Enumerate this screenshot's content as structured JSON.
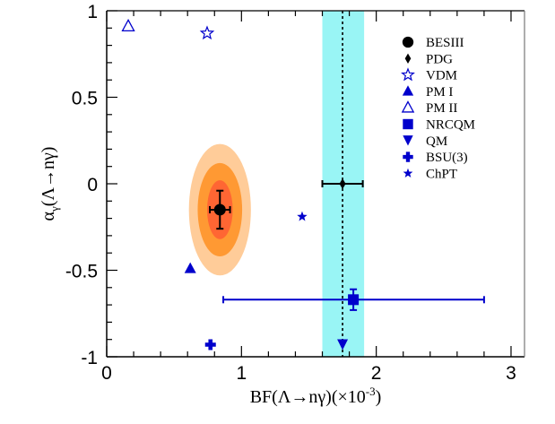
{
  "chart_data": {
    "type": "scatter",
    "title": "",
    "xlabel": "BF(Λ→nγ)(×10",
    "xlabel_sup": "-3",
    "xlabel_end": ")",
    "ylabel": "α",
    "ylabel_sub": "γ",
    "ylabel_end": "(Λ→nγ)",
    "xlim": [
      0,
      3.1
    ],
    "ylim": [
      -1,
      1
    ],
    "x_ticks": [
      0,
      1,
      2,
      3
    ],
    "x_tick_labels": [
      "0",
      "1",
      "2",
      "3"
    ],
    "y_ticks": [
      1,
      0.5,
      0,
      -0.5,
      -1
    ],
    "y_tick_labels": [
      "1",
      "0.5",
      "0",
      "-0.5",
      "-1"
    ],
    "grid": false,
    "legend_position": "top-right",
    "pdg_band": {
      "x_min": 1.6,
      "x_max": 1.91,
      "central": 1.75,
      "color": "#99f5f5"
    },
    "besiii_contours": {
      "center": [
        0.84,
        -0.15
      ],
      "levels": [
        {
          "sigma": 3,
          "rx": 0.23,
          "ry": 0.38,
          "color": "#ffcc99"
        },
        {
          "sigma": 2,
          "rx": 0.165,
          "ry": 0.27,
          "color": "#ff9933"
        },
        {
          "sigma": 1,
          "rx": 0.095,
          "ry": 0.17,
          "color": "#ff6633"
        }
      ]
    },
    "series": [
      {
        "name": "BESIII",
        "marker": "circle",
        "color": "#000000",
        "x": 0.84,
        "y": -0.15,
        "xerr": 0.075,
        "yerr": 0.11
      },
      {
        "name": "PDG",
        "marker": "diamond",
        "color": "#000000",
        "x": 1.75,
        "y": 0.0,
        "xerr": 0.15,
        "yerr": 0
      },
      {
        "name": "VDM",
        "marker": "open-star",
        "color": "#0000cc",
        "x": 0.745,
        "y": 0.87
      },
      {
        "name": "PM I",
        "marker": "triangle-up",
        "color": "#0000cc",
        "x": 0.62,
        "y": -0.49
      },
      {
        "name": "PM II",
        "marker": "open-triangle-up",
        "color": "#0000cc",
        "x": 0.16,
        "y": 0.91
      },
      {
        "name": "NRCQM",
        "marker": "square",
        "color": "#0000cc",
        "x": 1.83,
        "y": -0.67,
        "xerr_low": 0.965,
        "xerr_high": 0.97,
        "yerr": 0.06
      },
      {
        "name": "QM",
        "marker": "triangle-down",
        "color": "#0000cc",
        "x": 1.75,
        "y": -0.93
      },
      {
        "name": "BSU(3)",
        "marker": "cross",
        "color": "#0000cc",
        "x": 0.77,
        "y": -0.93
      },
      {
        "name": "ChPT",
        "marker": "star",
        "color": "#0000cc",
        "x": 1.45,
        "y": -0.19
      }
    ]
  }
}
